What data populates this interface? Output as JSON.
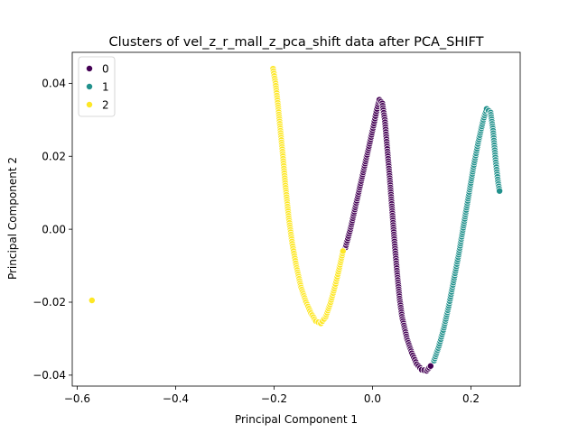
{
  "chart_data": {
    "type": "scatter",
    "title": "Clusters of vel_z_r_mall_z_pca_shift data after PCA_SHIFT",
    "xlabel": "Principal Component 1",
    "ylabel": "Principal Component 2",
    "xlim": [
      -0.61,
      0.3
    ],
    "ylim": [
      -0.043,
      0.0485
    ],
    "xticks": [
      -0.6,
      -0.4,
      -0.2,
      0.0,
      0.2
    ],
    "xtick_labels": [
      "−0.6",
      "−0.4",
      "−0.2",
      "0.0",
      "0.2"
    ],
    "yticks": [
      -0.04,
      -0.02,
      0.0,
      0.02,
      0.04
    ],
    "ytick_labels": [
      "−0.04",
      "−0.02",
      "0.00",
      "0.02",
      "0.04"
    ],
    "grid": false,
    "legend": {
      "placement": "top-left",
      "entries": [
        "0",
        "1",
        "2"
      ]
    },
    "series": [
      {
        "name": "0",
        "color": "#440154",
        "points": [
          [
            -0.055,
            -0.005
          ],
          [
            -0.045,
            0.0
          ],
          [
            -0.035,
            0.006
          ],
          [
            -0.025,
            0.012
          ],
          [
            -0.015,
            0.018
          ],
          [
            -0.005,
            0.024
          ],
          [
            0.003,
            0.029
          ],
          [
            0.009,
            0.033
          ],
          [
            0.014,
            0.0355
          ],
          [
            0.02,
            0.0345
          ],
          [
            0.025,
            0.03
          ],
          [
            0.03,
            0.022
          ],
          [
            0.035,
            0.014
          ],
          [
            0.04,
            0.005
          ],
          [
            0.045,
            -0.004
          ],
          [
            0.05,
            -0.012
          ],
          [
            0.055,
            -0.019
          ],
          [
            0.06,
            -0.024
          ],
          [
            0.07,
            -0.03
          ],
          [
            0.08,
            -0.034
          ],
          [
            0.09,
            -0.037
          ],
          [
            0.1,
            -0.0385
          ],
          [
            0.11,
            -0.0388
          ],
          [
            0.118,
            -0.0375
          ]
        ]
      },
      {
        "name": "1",
        "color": "#21918c",
        "points": [
          [
            0.125,
            -0.036
          ],
          [
            0.135,
            -0.032
          ],
          [
            0.145,
            -0.027
          ],
          [
            0.155,
            -0.021
          ],
          [
            0.165,
            -0.014
          ],
          [
            0.175,
            -0.007
          ],
          [
            0.185,
            0.001
          ],
          [
            0.195,
            0.009
          ],
          [
            0.205,
            0.017
          ],
          [
            0.215,
            0.024
          ],
          [
            0.225,
            0.03
          ],
          [
            0.232,
            0.033
          ],
          [
            0.24,
            0.032
          ],
          [
            0.245,
            0.027
          ],
          [
            0.25,
            0.019
          ],
          [
            0.255,
            0.013
          ],
          [
            0.258,
            0.0105
          ]
        ]
      },
      {
        "name": "2",
        "color": "#fde725",
        "points": [
          [
            -0.57,
            -0.0195
          ],
          [
            -0.202,
            0.044
          ],
          [
            -0.197,
            0.04
          ],
          [
            -0.192,
            0.034
          ],
          [
            -0.187,
            0.027
          ],
          [
            -0.182,
            0.02
          ],
          [
            -0.177,
            0.012
          ],
          [
            -0.17,
            0.003
          ],
          [
            -0.163,
            -0.004
          ],
          [
            -0.155,
            -0.01
          ],
          [
            -0.145,
            -0.016
          ],
          [
            -0.135,
            -0.02
          ],
          [
            -0.125,
            -0.023
          ],
          [
            -0.115,
            -0.0252
          ],
          [
            -0.105,
            -0.0258
          ],
          [
            -0.095,
            -0.024
          ],
          [
            -0.085,
            -0.02
          ],
          [
            -0.075,
            -0.015
          ],
          [
            -0.068,
            -0.011
          ],
          [
            -0.06,
            -0.006
          ]
        ]
      }
    ]
  }
}
